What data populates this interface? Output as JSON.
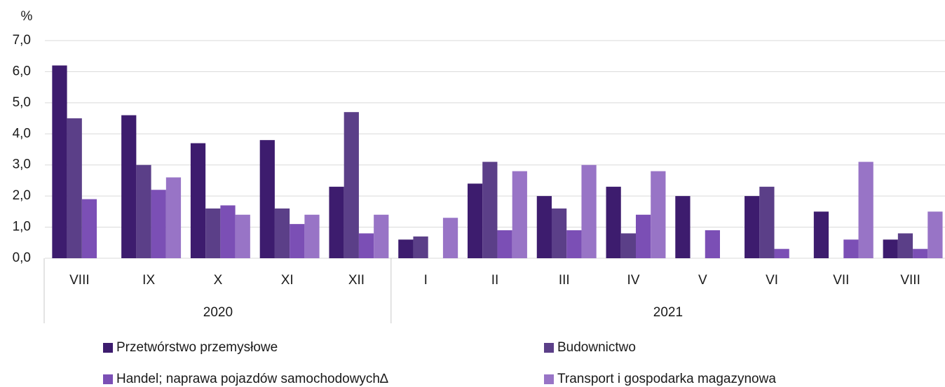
{
  "chart_data": {
    "type": "bar",
    "y_axis_label": "%",
    "categories": [
      "VIII",
      "IX",
      "X",
      "XI",
      "XII",
      "I",
      "II",
      "III",
      "IV",
      "V",
      "VI",
      "VII",
      "VIII"
    ],
    "category_groups": [
      {
        "label": "2020",
        "count": 5
      },
      {
        "label": "2021",
        "count": 8
      }
    ],
    "series": [
      {
        "name": "Przetwórstwo przemysłowe",
        "color": "#3d1c6e",
        "values": [
          6.2,
          4.6,
          3.7,
          3.8,
          2.3,
          0.6,
          2.4,
          2.0,
          2.3,
          2.0,
          2.0,
          1.5,
          0.6
        ]
      },
      {
        "name": "Budownictwo",
        "color": "#5b3f88",
        "values": [
          4.5,
          3.0,
          1.6,
          1.6,
          4.7,
          0.7,
          3.1,
          1.6,
          0.8,
          null,
          2.3,
          null,
          0.8
        ]
      },
      {
        "name": "Handel; naprawa pojazdów samochodowych∆",
        "color": "#7b4fb5",
        "values": [
          1.9,
          2.2,
          1.7,
          1.1,
          0.8,
          null,
          0.9,
          0.9,
          1.4,
          0.9,
          0.3,
          0.6,
          0.3
        ]
      },
      {
        "name": "Transport i gospodarka magazynowa",
        "color": "#9874c6",
        "values": [
          null,
          2.6,
          1.4,
          1.4,
          1.4,
          1.3,
          2.8,
          3.0,
          2.8,
          null,
          null,
          3.1,
          1.5
        ]
      }
    ],
    "ylim": [
      0,
      7
    ],
    "yticks": [
      {
        "value": 0,
        "label": "0,0"
      },
      {
        "value": 1,
        "label": "1,0"
      },
      {
        "value": 2,
        "label": "2,0"
      },
      {
        "value": 3,
        "label": "3,0"
      },
      {
        "value": 4,
        "label": "4,0"
      },
      {
        "value": 5,
        "label": "5,0"
      },
      {
        "value": 6,
        "label": "6,0"
      },
      {
        "value": 7,
        "label": "7,0"
      }
    ],
    "grid": true
  }
}
